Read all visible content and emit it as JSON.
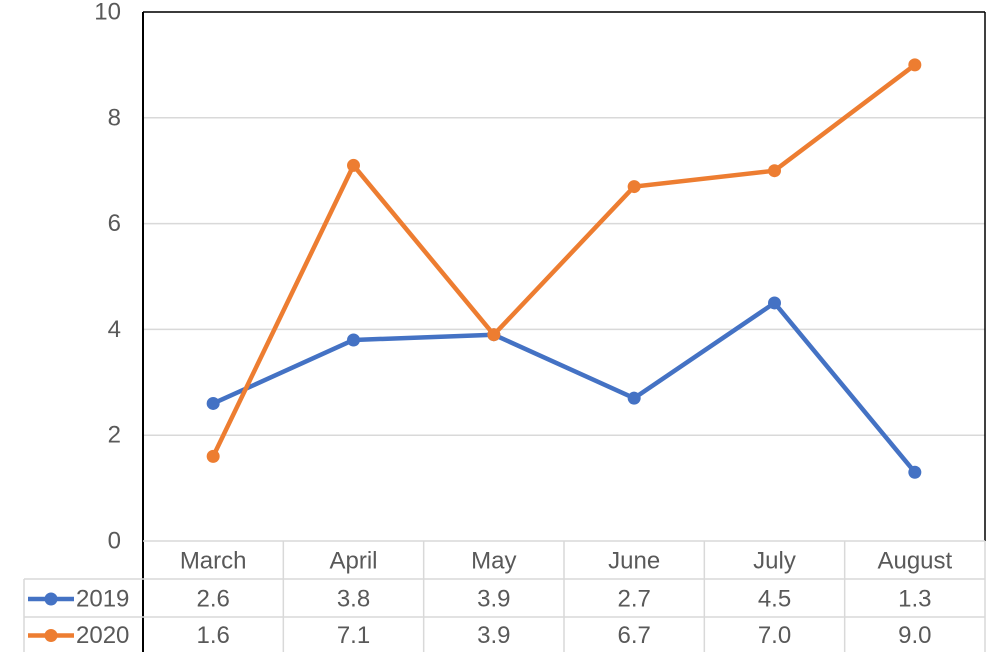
{
  "chart_data": {
    "type": "line",
    "title": "",
    "xlabel": "",
    "ylabel": "",
    "categories": [
      "March",
      "April",
      "May",
      "June",
      "July",
      "August"
    ],
    "series": [
      {
        "name": "2019",
        "values": [
          2.6,
          3.8,
          3.9,
          2.7,
          4.5,
          1.3
        ],
        "value_labels": [
          "2.6",
          "3.8",
          "3.9",
          "2.7",
          "4.5",
          "1.3"
        ],
        "color": "#4472C4"
      },
      {
        "name": "2020",
        "values": [
          1.6,
          7.1,
          3.9,
          6.7,
          7.0,
          9.0
        ],
        "value_labels": [
          "1.6",
          "7.1",
          "3.9",
          "6.7",
          "7.0",
          "9.0"
        ],
        "color": "#ED7D31"
      }
    ],
    "ylim": [
      0,
      10
    ],
    "y_ticks": [
      "0",
      "2",
      "4",
      "6",
      "8",
      "10"
    ],
    "grid": true,
    "legend": "data-table-left",
    "data_table": true
  }
}
